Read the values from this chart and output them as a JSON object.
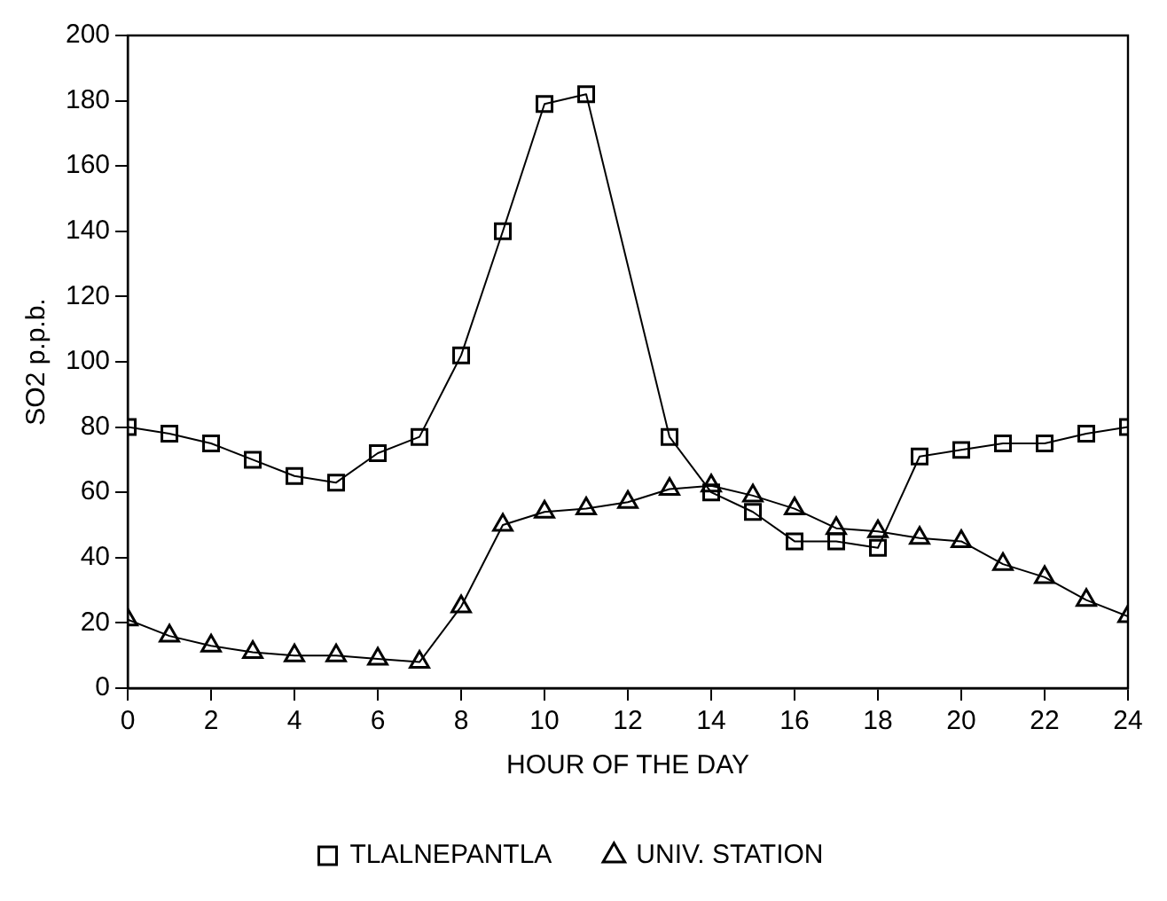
{
  "chart_data": {
    "type": "line",
    "xlabel": "HOUR OF THE DAY",
    "ylabel": "SO2 p.p.b.",
    "xlim": [
      0,
      24
    ],
    "xticks": [
      0,
      2,
      4,
      6,
      8,
      10,
      12,
      14,
      16,
      18,
      20,
      22,
      24
    ],
    "ylim": [
      0,
      200
    ],
    "yticks": [
      0,
      20,
      40,
      60,
      80,
      100,
      120,
      140,
      160,
      180,
      200
    ],
    "grid": false,
    "legend": "bottom",
    "series": [
      {
        "name": "TLALNEPANTLA",
        "color": "#000000",
        "marker": "square",
        "x": [
          0,
          1,
          2,
          3,
          4,
          5,
          6,
          7,
          8,
          9,
          10,
          11,
          13,
          14,
          15,
          16,
          17,
          18,
          19,
          20,
          21,
          22,
          23,
          24
        ],
        "values": [
          80,
          78,
          75,
          70,
          65,
          63,
          72,
          77,
          102,
          140,
          179,
          182,
          77,
          60,
          54,
          45,
          45,
          43,
          71,
          73,
          75,
          75,
          78,
          80
        ]
      },
      {
        "name": "UNIV. STATION",
        "color": "#000000",
        "marker": "triangle",
        "x": [
          0,
          1,
          2,
          3,
          4,
          5,
          6,
          7,
          8,
          9,
          10,
          11,
          12,
          13,
          14,
          15,
          16,
          17,
          18,
          19,
          20,
          21,
          22,
          23,
          24
        ],
        "values": [
          21,
          16,
          13,
          11,
          10,
          10,
          9,
          8,
          25,
          50,
          54,
          55,
          57,
          61,
          62,
          59,
          55,
          49,
          48,
          46,
          45,
          38,
          34,
          27,
          22
        ]
      }
    ]
  }
}
